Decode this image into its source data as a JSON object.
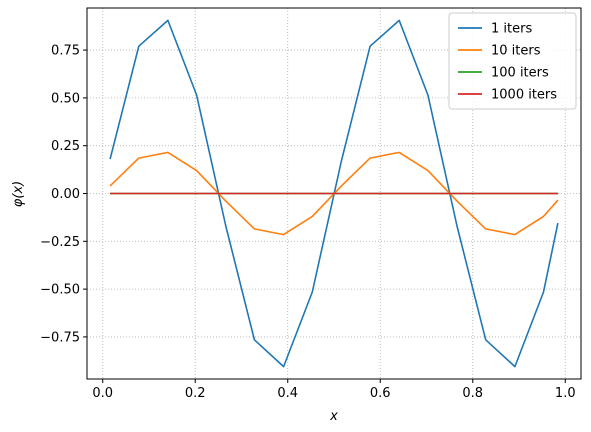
{
  "chart_data": {
    "type": "line",
    "xlabel": "x",
    "ylabel": "φ(x)",
    "xlim": [
      -0.034,
      1.034
    ],
    "ylim": [
      -0.97,
      0.97
    ],
    "grid": true,
    "grid_style": "dotted",
    "legend_position": "top-right",
    "x_ticks": [
      0.0,
      0.2,
      0.4,
      0.6,
      0.8,
      1.0
    ],
    "x_tick_labels": [
      "0.0",
      "0.2",
      "0.4",
      "0.6",
      "0.8",
      "1.0"
    ],
    "y_ticks": [
      -0.75,
      -0.5,
      -0.25,
      0.0,
      0.25,
      0.5,
      0.75
    ],
    "y_tick_labels": [
      "−0.75",
      "−0.50",
      "−0.25",
      "0.00",
      "0.25",
      "0.50",
      "0.75"
    ],
    "x": [
      0.016,
      0.078,
      0.141,
      0.203,
      0.266,
      0.328,
      0.391,
      0.453,
      0.516,
      0.578,
      0.641,
      0.703,
      0.766,
      0.828,
      0.891,
      0.953,
      0.984
    ],
    "series": [
      {
        "name": "1 iters",
        "color": "#1f77b4",
        "values": [
          0.18,
          0.77,
          0.905,
          0.515,
          -0.17,
          -0.765,
          -0.905,
          -0.515,
          0.17,
          0.77,
          0.905,
          0.515,
          -0.17,
          -0.765,
          -0.905,
          -0.515,
          -0.155
        ]
      },
      {
        "name": "10 iters",
        "color": "#ff7f0e",
        "values": [
          0.04,
          0.185,
          0.215,
          0.12,
          -0.04,
          -0.185,
          -0.215,
          -0.12,
          0.04,
          0.185,
          0.215,
          0.12,
          -0.04,
          -0.185,
          -0.215,
          -0.12,
          -0.035
        ]
      },
      {
        "name": "100 iters",
        "color": "#2ca02c",
        "values": [
          0,
          0,
          0,
          0,
          0,
          0,
          0,
          0,
          0,
          0,
          0,
          0,
          0,
          0,
          0,
          0,
          0
        ]
      },
      {
        "name": "1000 iters",
        "color": "#d62728",
        "values": [
          0,
          0,
          0,
          0,
          0,
          0,
          0,
          0,
          0,
          0,
          0,
          0,
          0,
          0,
          0,
          0,
          0
        ]
      }
    ]
  }
}
